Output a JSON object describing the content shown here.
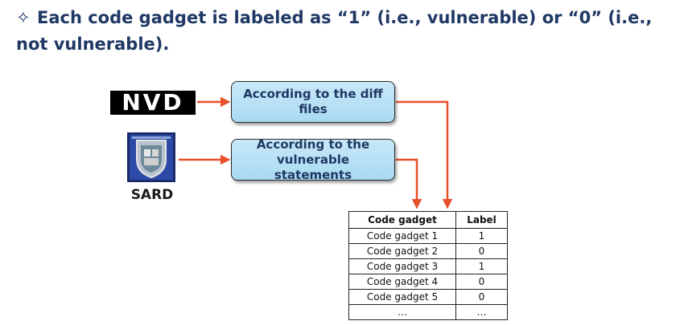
{
  "heading": {
    "bullet": "✧",
    "text": "Each code gadget is labeled as “1” (i.e., vulnerable) or “0” (i.e., not vulnerable)."
  },
  "sources": {
    "nvd": {
      "logo_text": "NVD"
    },
    "sard": {
      "label": "SARD"
    }
  },
  "steps": [
    {
      "label": "According to the diff files"
    },
    {
      "label": "According to the vulnerable statements"
    }
  ],
  "table": {
    "headers": [
      "Code gadget",
      "Label"
    ],
    "rows": [
      [
        "Code gadget 1",
        "1"
      ],
      [
        "Code gadget 2",
        "0"
      ],
      [
        "Code gadget 3",
        "1"
      ],
      [
        "Code gadget 4",
        "0"
      ],
      [
        "Code gadget 5",
        "0"
      ],
      [
        "…",
        "…"
      ]
    ]
  },
  "colors": {
    "heading": "#1f3864",
    "box_fill": "#b8e1f5",
    "arrow": "#e8502a"
  }
}
